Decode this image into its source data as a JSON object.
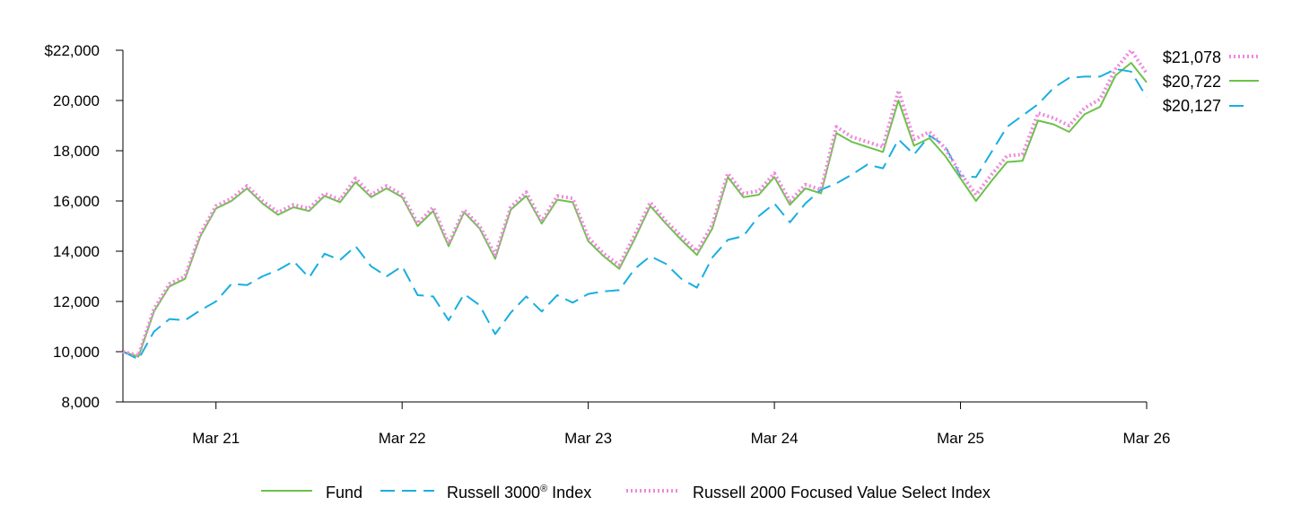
{
  "chart_data": {
    "type": "line",
    "ylim": [
      8000,
      22000
    ],
    "y_ticks": [
      "$22,000",
      "20,000",
      "18,000",
      "16,000",
      "14,000",
      "12,000",
      "10,000",
      "8,000"
    ],
    "y_tick_values": [
      22000,
      20000,
      18000,
      16000,
      14000,
      12000,
      10000,
      8000
    ],
    "x_tick_labels": [
      "Mar 21",
      "Mar 22",
      "Mar 23",
      "Mar 24",
      "Mar 25",
      "Mar 26"
    ],
    "x_tick_index": [
      6,
      18,
      30,
      42,
      54,
      66
    ],
    "x_count": 67,
    "legend": {
      "position": "bottom",
      "fund": "Fund",
      "russell3000_prefix": "Russell 3000",
      "russell3000_sup": "®",
      "russell3000_suffix": " Index",
      "russell2000": "Russell 2000 Focused Value Select Index"
    },
    "end_labels": [
      "$21,078",
      "$20,722",
      "$20,127"
    ],
    "series": [
      {
        "name": "Fund",
        "color": "#6cc24a",
        "style": "solid",
        "values": [
          10000,
          9800,
          11600,
          12600,
          12900,
          14600,
          15700,
          16000,
          16500,
          15900,
          15450,
          15750,
          15600,
          16200,
          15950,
          16750,
          16150,
          16500,
          16150,
          15000,
          15600,
          14200,
          15550,
          14900,
          13700,
          15650,
          16200,
          15100,
          16050,
          15950,
          14400,
          13800,
          13300,
          14500,
          15800,
          15100,
          14450,
          13850,
          14900,
          16950,
          16150,
          16250,
          16950,
          15850,
          16500,
          16300,
          18700,
          18350,
          18150,
          17950,
          20000,
          18200,
          18500,
          17800,
          16900,
          16000,
          16800,
          17550,
          17600,
          19200,
          19050,
          18750,
          19450,
          19750,
          21000,
          21500,
          20722
        ]
      },
      {
        "name": "Russell 3000® Index",
        "color": "#1aaee0",
        "style": "dashed",
        "values": [
          10000,
          9700,
          10800,
          11300,
          11250,
          11650,
          12000,
          12700,
          12650,
          13000,
          13250,
          13600,
          12950,
          13900,
          13650,
          14200,
          13400,
          13000,
          13400,
          12250,
          12200,
          11250,
          12300,
          11850,
          10700,
          11550,
          12200,
          11600,
          12250,
          11950,
          12300,
          12400,
          12450,
          13300,
          13800,
          13500,
          12900,
          12550,
          13750,
          14450,
          14600,
          15400,
          15900,
          15150,
          15900,
          16450,
          16700,
          17050,
          17450,
          17300,
          18450,
          17850,
          18600,
          18200,
          17000,
          16950,
          17950,
          18950,
          19400,
          19850,
          20500,
          20900,
          20950,
          20950,
          21250,
          21150,
          20127
        ]
      },
      {
        "name": "Russell 2000 Focused Value Select Index",
        "color": "#ee88dd",
        "style": "dotted",
        "values": [
          10000,
          9850,
          11700,
          12700,
          13000,
          14700,
          15800,
          16100,
          16600,
          16000,
          15550,
          15850,
          15700,
          16300,
          16050,
          16900,
          16250,
          16600,
          16250,
          15100,
          15750,
          14300,
          15650,
          15000,
          13850,
          15750,
          16350,
          15200,
          16200,
          16100,
          14550,
          13900,
          13450,
          14650,
          15950,
          15200,
          14600,
          14000,
          15050,
          17100,
          16300,
          16400,
          17100,
          16000,
          16650,
          16450,
          18950,
          18550,
          18350,
          18150,
          20400,
          18450,
          18750,
          18100,
          17100,
          16250,
          17050,
          17800,
          17850,
          19500,
          19300,
          19000,
          19700,
          20050,
          21250,
          22000,
          21078
        ]
      }
    ]
  }
}
